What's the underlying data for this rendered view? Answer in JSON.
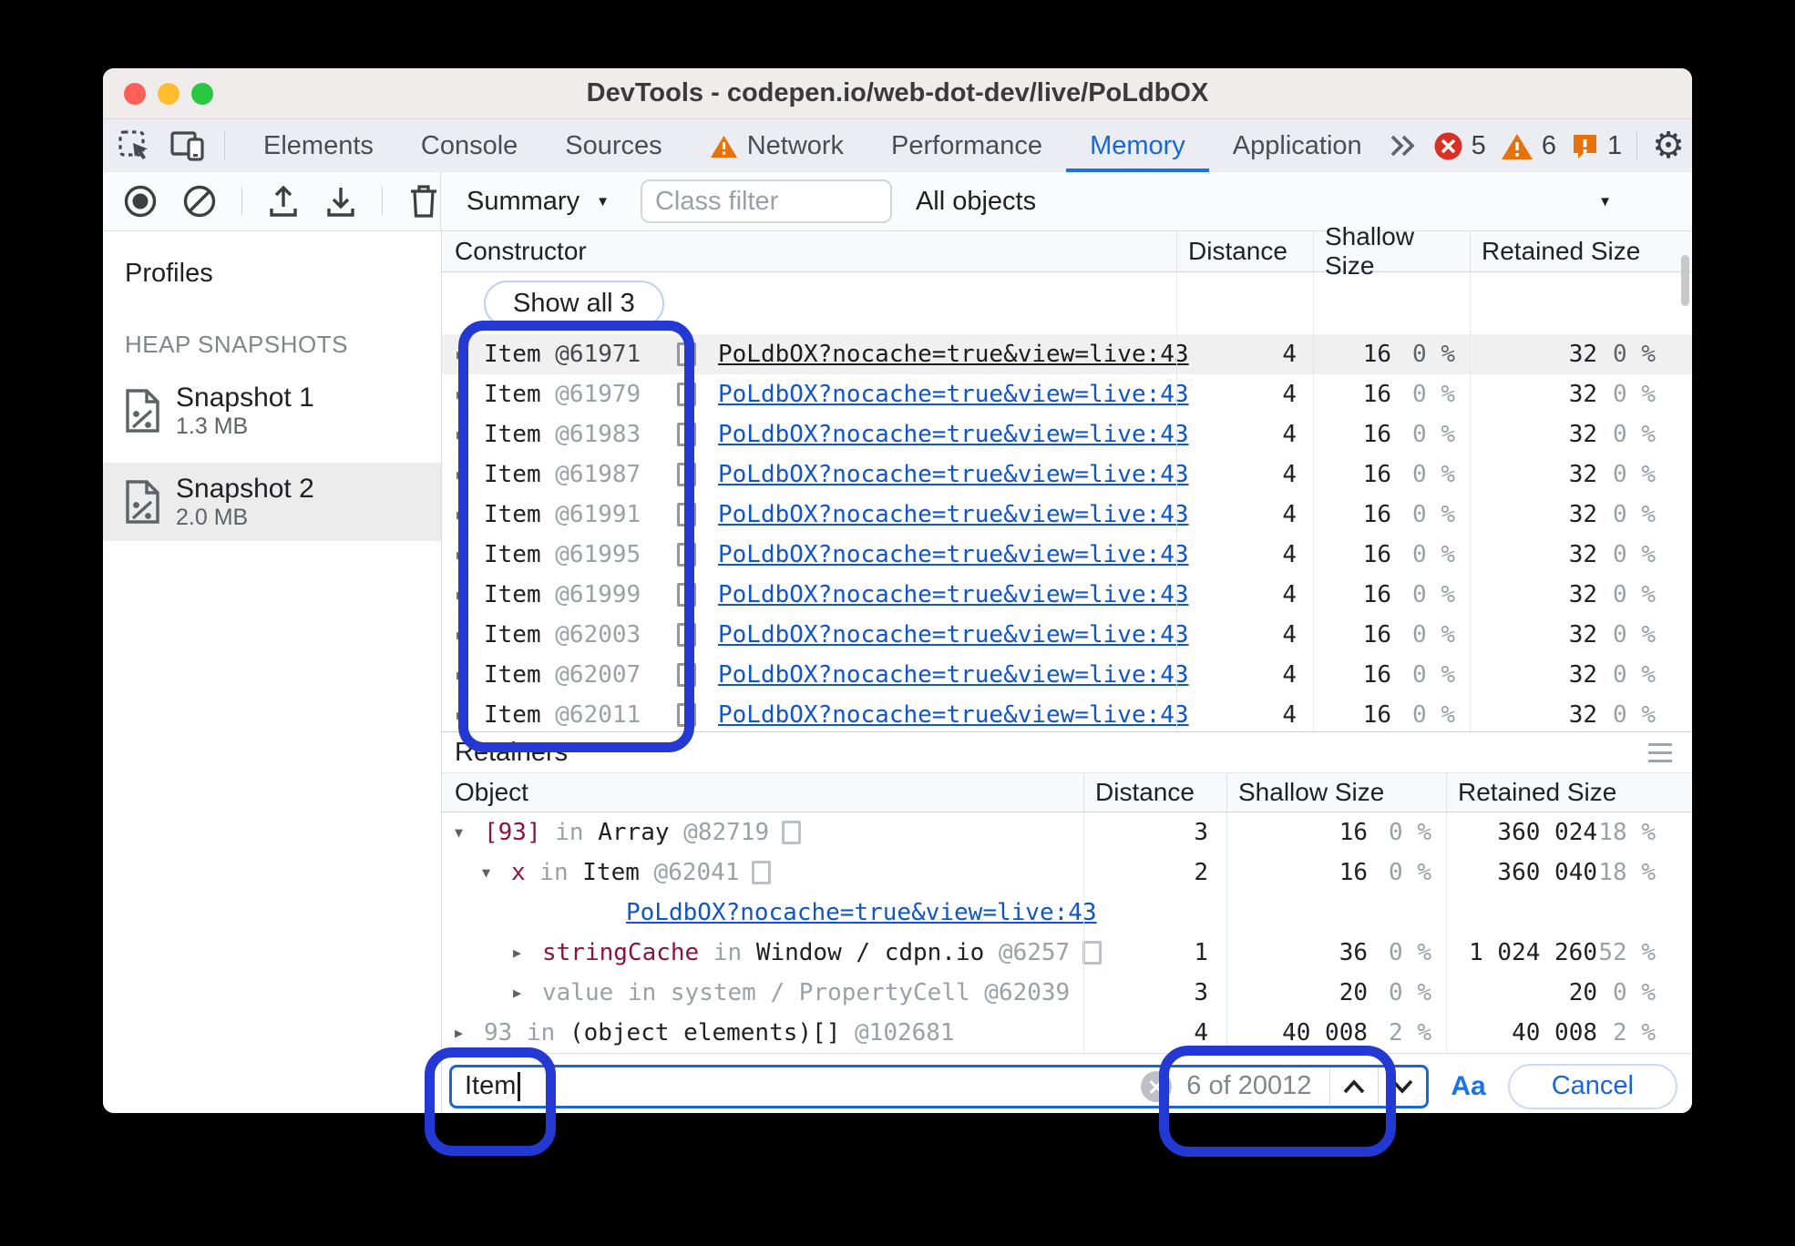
{
  "window": {
    "title": "DevTools - codepen.io/web-dot-dev/live/PoLdbOX"
  },
  "tabbar": {
    "tabs": [
      {
        "label": "Elements"
      },
      {
        "label": "Console"
      },
      {
        "label": "Sources"
      },
      {
        "label": "Network",
        "warning": true
      },
      {
        "label": "Performance"
      },
      {
        "label": "Memory",
        "active": true
      },
      {
        "label": "Application"
      }
    ],
    "error_count": "5",
    "warning_count": "6",
    "issue_count": "1"
  },
  "toolbar": {
    "profile_view_label": "Summary",
    "class_filter_placeholder": "Class filter",
    "object_filter_label": "All objects"
  },
  "sidebar": {
    "title": "Profiles",
    "section_label": "HEAP SNAPSHOTS",
    "snapshots": [
      {
        "name": "Snapshot 1",
        "size": "1.3 MB",
        "selected": false
      },
      {
        "name": "Snapshot 2",
        "size": "2.0 MB",
        "selected": true
      }
    ]
  },
  "summary_grid": {
    "columns": {
      "constructor": "Constructor",
      "distance": "Distance",
      "shallow": "Shallow Size",
      "retained": "Retained Size"
    },
    "show_all_label": "Show all 3",
    "link_text": "PoLdbOX?nocache=true&view=live:43",
    "rows": [
      {
        "name": "Item",
        "id": "@61971",
        "distance": "4",
        "shallow": "16",
        "shallow_pct": "0 %",
        "retained": "32",
        "retained_pct": "0 %",
        "selected": true
      },
      {
        "name": "Item",
        "id": "@61979",
        "distance": "4",
        "shallow": "16",
        "shallow_pct": "0 %",
        "retained": "32",
        "retained_pct": "0 %",
        "selected": false
      },
      {
        "name": "Item",
        "id": "@61983",
        "distance": "4",
        "shallow": "16",
        "shallow_pct": "0 %",
        "retained": "32",
        "retained_pct": "0 %",
        "selected": false
      },
      {
        "name": "Item",
        "id": "@61987",
        "distance": "4",
        "shallow": "16",
        "shallow_pct": "0 %",
        "retained": "32",
        "retained_pct": "0 %",
        "selected": false
      },
      {
        "name": "Item",
        "id": "@61991",
        "distance": "4",
        "shallow": "16",
        "shallow_pct": "0 %",
        "retained": "32",
        "retained_pct": "0 %",
        "selected": false
      },
      {
        "name": "Item",
        "id": "@61995",
        "distance": "4",
        "shallow": "16",
        "shallow_pct": "0 %",
        "retained": "32",
        "retained_pct": "0 %",
        "selected": false
      },
      {
        "name": "Item",
        "id": "@61999",
        "distance": "4",
        "shallow": "16",
        "shallow_pct": "0 %",
        "retained": "32",
        "retained_pct": "0 %",
        "selected": false
      },
      {
        "name": "Item",
        "id": "@62003",
        "distance": "4",
        "shallow": "16",
        "shallow_pct": "0 %",
        "retained": "32",
        "retained_pct": "0 %",
        "selected": false
      },
      {
        "name": "Item",
        "id": "@62007",
        "distance": "4",
        "shallow": "16",
        "shallow_pct": "0 %",
        "retained": "32",
        "retained_pct": "0 %",
        "selected": false
      },
      {
        "name": "Item",
        "id": "@62011",
        "distance": "4",
        "shallow": "16",
        "shallow_pct": "0 %",
        "retained": "32",
        "retained_pct": "0 %",
        "selected": false
      }
    ]
  },
  "retainers": {
    "title": "Retainers",
    "columns": {
      "object": "Object",
      "distance": "Distance",
      "shallow": "Shallow Size",
      "retained": "Retained Size"
    },
    "link_text": "PoLdbOX?nocache=true&view=live:43",
    "rows": [
      {
        "type": "node",
        "arrow": "open",
        "indent": 0,
        "name": "[93]",
        "name_style": "prop",
        "sep": "in",
        "obj": "Array",
        "obj_style": "dark",
        "id": "@82719",
        "box": true,
        "distance": "3",
        "shallow": "16",
        "shallow_pct": "0 %",
        "retained": "360 024",
        "retained_pct": "18 %"
      },
      {
        "type": "node",
        "arrow": "open",
        "indent": 1,
        "name": "x",
        "name_style": "prop",
        "sep": "in",
        "obj": "Item",
        "obj_style": "dark",
        "id": "@62041",
        "box": true,
        "distance": "2",
        "shallow": "16",
        "shallow_pct": "0 %",
        "retained": "360 040",
        "retained_pct": "18 %"
      },
      {
        "type": "link"
      },
      {
        "type": "node",
        "arrow": "closed",
        "indent": 2,
        "name": "stringCache",
        "name_style": "prop",
        "sep": "in",
        "obj": "Window / cdpn.io",
        "obj_style": "dark",
        "id": "@6257",
        "box": true,
        "distance": "1",
        "shallow": "36",
        "shallow_pct": "0 %",
        "retained": "1 024 260",
        "retained_pct": "52 %"
      },
      {
        "type": "node",
        "arrow": "closed",
        "indent": 2,
        "name": "value",
        "name_style": "gray",
        "sep": "in",
        "obj": "system / PropertyCell",
        "obj_style": "gray",
        "id": "@62039",
        "box": false,
        "distance": "3",
        "shallow": "20",
        "shallow_pct": "0 %",
        "retained": "20",
        "retained_pct": "0 %"
      },
      {
        "type": "node",
        "arrow": "closed",
        "indent": 0,
        "name": "93",
        "name_style": "gray",
        "sep": "in",
        "obj": "(object elements)[]",
        "obj_style": "dark",
        "id": "@102681",
        "box": false,
        "distance": "4",
        "shallow": "40 008",
        "shallow_pct": "2 %",
        "retained": "40 008",
        "retained_pct": "2 %"
      }
    ]
  },
  "findbar": {
    "query": "Item",
    "result_count": "6 of 20012",
    "match_case_label": "Aa",
    "cancel_label": "Cancel"
  },
  "colors": {
    "accent": "#1a73e8",
    "annotation": "#2438d4",
    "error": "#d93025",
    "warning": "#e8710a"
  }
}
